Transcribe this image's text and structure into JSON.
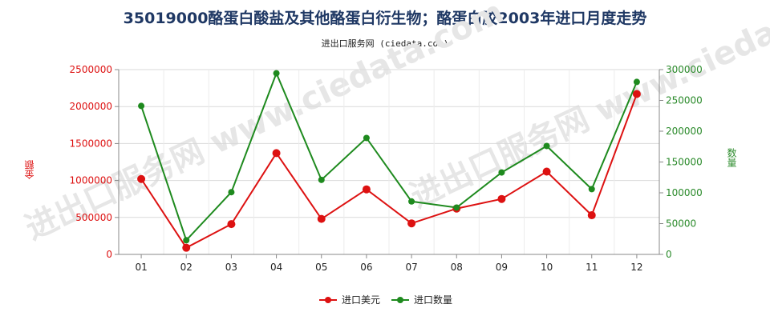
{
  "header": {
    "title": "35019000酪蛋白酸盐及其他酪蛋白衍生物；酪蛋白胶2003年进口月度走势",
    "subtitle": "进出口服务网 (ciedata.com)"
  },
  "watermark": "进出口服务网 www.ciedata.com",
  "chart_data": {
    "type": "line",
    "categories": [
      "01",
      "02",
      "03",
      "04",
      "05",
      "06",
      "07",
      "08",
      "09",
      "10",
      "11",
      "12"
    ],
    "y_left": {
      "label": "金额",
      "ylim": [
        0,
        2500000
      ],
      "ticks": [
        "0",
        "500000",
        "1000000",
        "1500000",
        "2000000",
        "2500000"
      ],
      "color": "#dd1111"
    },
    "y_right": {
      "label": "数量",
      "ylim": [
        0,
        300000
      ],
      "ticks": [
        "0",
        "50000",
        "100000",
        "150000",
        "200000",
        "250000",
        "300000"
      ],
      "color": "#1e8a1e"
    },
    "series": [
      {
        "name": "进口美元",
        "axis": "left",
        "color": "#dd1111",
        "values": [
          1020000,
          90000,
          410000,
          1370000,
          480000,
          880000,
          420000,
          620000,
          750000,
          1120000,
          530000,
          2170000
        ]
      },
      {
        "name": "进口数量",
        "axis": "right",
        "color": "#1e8a1e",
        "values": [
          241000,
          23000,
          101000,
          294000,
          121000,
          189000,
          86000,
          76000,
          133000,
          176000,
          106000,
          280000
        ]
      }
    ],
    "legend_position": "bottom",
    "grid": true
  }
}
